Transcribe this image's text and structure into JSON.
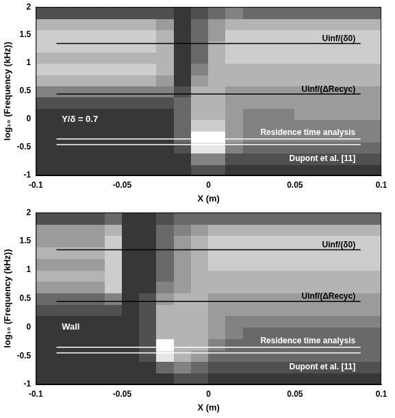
{
  "chart_data": [
    {
      "type": "heatmap",
      "x_label": "X (m)",
      "y_label": "log₁₀ (Frequency (kHz))",
      "xlim": [
        -0.1,
        0.1
      ],
      "xticks": [
        -0.1,
        -0.05,
        0,
        0.05,
        0.1
      ],
      "ylim": [
        -1,
        2
      ],
      "yticks": [
        -1,
        -0.5,
        0,
        0.5,
        1,
        1.5,
        2
      ],
      "grid": false,
      "clim": [
        0,
        9
      ],
      "x": [
        -0.095,
        -0.085,
        -0.075,
        -0.065,
        -0.055,
        -0.045,
        -0.035,
        -0.025,
        -0.015,
        -0.005,
        0.005,
        0.015,
        0.025,
        0.035,
        0.045,
        0.055,
        0.065,
        0.075,
        0.085,
        0.095
      ],
      "y": [
        -0.9,
        -0.7,
        -0.5,
        -0.3,
        -0.1,
        0.1,
        0.3,
        0.5,
        0.7,
        0.9,
        1.1,
        1.3,
        1.5,
        1.7,
        1.9
      ],
      "cells": [
        [
          1,
          1,
          1,
          1,
          1,
          1,
          1,
          1,
          1,
          2,
          2,
          1,
          1,
          1,
          1,
          1,
          1,
          1,
          1,
          1
        ],
        [
          1,
          1,
          1,
          1,
          1,
          1,
          1,
          1,
          1,
          4,
          4,
          2,
          2,
          2,
          2,
          2,
          2,
          2,
          2,
          2
        ],
        [
          1,
          1,
          1,
          1,
          1,
          1,
          1,
          1,
          2,
          8,
          8,
          4,
          3,
          3,
          3,
          3,
          3,
          3,
          3,
          3
        ],
        [
          1,
          1,
          1,
          1,
          1,
          1,
          1,
          1,
          3,
          9,
          9,
          5,
          4,
          4,
          4,
          4,
          4,
          4,
          4,
          4
        ],
        [
          1,
          1,
          1,
          1,
          1,
          1,
          1,
          1,
          3,
          7,
          7,
          5,
          4,
          4,
          4,
          4,
          4,
          4,
          4,
          4
        ],
        [
          1,
          1,
          1,
          1,
          1,
          1,
          1,
          1,
          3,
          6,
          6,
          5,
          4,
          4,
          4,
          5,
          5,
          5,
          5,
          5
        ],
        [
          2,
          2,
          2,
          2,
          2,
          2,
          2,
          2,
          3,
          6,
          6,
          5,
          5,
          5,
          5,
          5,
          5,
          5,
          5,
          5
        ],
        [
          4,
          4,
          4,
          4,
          4,
          4,
          4,
          4,
          2,
          6,
          6,
          5,
          5,
          5,
          5,
          5,
          5,
          5,
          5,
          5
        ],
        [
          6,
          6,
          6,
          6,
          6,
          6,
          6,
          5,
          1,
          5,
          6,
          6,
          6,
          6,
          6,
          6,
          6,
          6,
          6,
          6
        ],
        [
          7,
          7,
          7,
          7,
          7,
          7,
          7,
          6,
          1,
          4,
          6,
          6,
          6,
          6,
          6,
          6,
          6,
          6,
          6,
          6
        ],
        [
          6,
          6,
          6,
          6,
          6,
          6,
          6,
          6,
          1,
          3,
          6,
          7,
          7,
          7,
          7,
          7,
          7,
          7,
          7,
          7
        ],
        [
          7,
          7,
          7,
          7,
          7,
          7,
          7,
          6,
          1,
          3,
          6,
          7,
          7,
          7,
          7,
          7,
          7,
          7,
          7,
          7
        ],
        [
          7,
          7,
          7,
          7,
          7,
          7,
          7,
          6,
          1,
          3,
          5,
          7,
          7,
          7,
          7,
          7,
          7,
          7,
          7,
          7
        ],
        [
          6,
          6,
          6,
          6,
          6,
          6,
          6,
          5,
          1,
          3,
          5,
          6,
          6,
          6,
          6,
          6,
          6,
          6,
          6,
          6
        ],
        [
          2,
          2,
          2,
          2,
          2,
          2,
          2,
          2,
          1,
          2,
          3,
          4,
          3,
          3,
          3,
          3,
          3,
          3,
          3,
          3
        ]
      ],
      "series": [
        {
          "name": "Uinf/(δ0)",
          "type": "line",
          "color": "#000000",
          "x": [
            -0.088,
            0.088
          ],
          "values": [
            1.35,
            1.35
          ],
          "label_at": [
            0.085,
            1.43
          ]
        },
        {
          "name": "Uinf/(ΔRecyc)",
          "type": "line",
          "color": "#000000",
          "x": [
            -0.088,
            0.088
          ],
          "values": [
            0.45,
            0.45
          ],
          "label_at": [
            0.085,
            0.53
          ]
        },
        {
          "name": "Residence time analysis",
          "type": "line",
          "color": "#ffffff",
          "x": [
            -0.088,
            0.088
          ],
          "values": [
            -0.35,
            -0.35
          ],
          "label_at": [
            0.085,
            -0.24
          ]
        },
        {
          "name": "Dupont et al. [11]",
          "type": "line",
          "color": "#ffffff",
          "x": [
            -0.088,
            0.088
          ],
          "values": [
            -0.45,
            -0.45
          ],
          "label_at": [
            0.085,
            -0.7
          ]
        }
      ],
      "annotations": [
        {
          "text": "Y/δ = 0.7",
          "x": -0.085,
          "y": 0.0,
          "color": "#ffffff"
        }
      ]
    },
    {
      "type": "heatmap",
      "x_label": "X (m)",
      "y_label": "log₁₀ (Frequency (kHz))",
      "xlim": [
        -0.1,
        0.1
      ],
      "xticks": [
        -0.1,
        -0.05,
        0,
        0.05,
        0.1
      ],
      "ylim": [
        -1,
        2
      ],
      "yticks": [
        -1,
        -0.5,
        0,
        0.5,
        1,
        1.5,
        2
      ],
      "grid": false,
      "clim": [
        0,
        9
      ],
      "x": [
        -0.095,
        -0.085,
        -0.075,
        -0.065,
        -0.055,
        -0.045,
        -0.035,
        -0.025,
        -0.015,
        -0.005,
        0.005,
        0.015,
        0.025,
        0.035,
        0.045,
        0.055,
        0.065,
        0.075,
        0.085,
        0.095
      ],
      "y": [
        -0.9,
        -0.7,
        -0.5,
        -0.3,
        -0.1,
        0.1,
        0.3,
        0.5,
        0.7,
        0.9,
        1.1,
        1.3,
        1.5,
        1.7,
        1.9
      ],
      "cells": [
        [
          1,
          1,
          1,
          1,
          1,
          1,
          1,
          1,
          2,
          2,
          1,
          1,
          1,
          1,
          1,
          1,
          1,
          1,
          1,
          1
        ],
        [
          1,
          1,
          1,
          1,
          1,
          1,
          1,
          3,
          4,
          3,
          2,
          2,
          2,
          2,
          2,
          2,
          2,
          2,
          2,
          2
        ],
        [
          1,
          1,
          1,
          1,
          1,
          1,
          2,
          8,
          6,
          5,
          3,
          3,
          3,
          3,
          3,
          3,
          3,
          3,
          3,
          3
        ],
        [
          1,
          1,
          1,
          1,
          1,
          1,
          2,
          9,
          6,
          6,
          4,
          3,
          3,
          3,
          3,
          3,
          3,
          3,
          3,
          3
        ],
        [
          1,
          1,
          1,
          1,
          1,
          1,
          2,
          6,
          6,
          6,
          5,
          4,
          3,
          3,
          3,
          3,
          3,
          3,
          3,
          3
        ],
        [
          1,
          1,
          1,
          1,
          1,
          1,
          2,
          6,
          6,
          6,
          5,
          4,
          4,
          4,
          4,
          4,
          4,
          4,
          4,
          4
        ],
        [
          2,
          2,
          2,
          2,
          2,
          1,
          2,
          6,
          6,
          6,
          5,
          5,
          5,
          5,
          5,
          5,
          5,
          5,
          5,
          5
        ],
        [
          3,
          3,
          3,
          3,
          4,
          1,
          2,
          5,
          6,
          6,
          5,
          5,
          5,
          5,
          5,
          5,
          5,
          5,
          5,
          5
        ],
        [
          5,
          5,
          5,
          5,
          7,
          1,
          1,
          4,
          5,
          6,
          6,
          6,
          6,
          6,
          6,
          6,
          6,
          6,
          6,
          6
        ],
        [
          6,
          6,
          6,
          6,
          7,
          1,
          1,
          3,
          5,
          6,
          6,
          6,
          6,
          6,
          6,
          6,
          6,
          6,
          6,
          6
        ],
        [
          5,
          5,
          5,
          5,
          7,
          1,
          1,
          3,
          5,
          6,
          7,
          7,
          7,
          7,
          7,
          7,
          7,
          7,
          7,
          7
        ],
        [
          6,
          6,
          6,
          6,
          7,
          1,
          1,
          3,
          5,
          6,
          7,
          7,
          7,
          7,
          7,
          7,
          7,
          7,
          7,
          7
        ],
        [
          5,
          5,
          5,
          5,
          7,
          1,
          1,
          3,
          5,
          6,
          7,
          7,
          7,
          7,
          7,
          7,
          7,
          7,
          7,
          7
        ],
        [
          5,
          5,
          5,
          5,
          6,
          1,
          1,
          3,
          4,
          5,
          6,
          6,
          6,
          6,
          6,
          6,
          6,
          6,
          6,
          6
        ],
        [
          2,
          2,
          2,
          2,
          3,
          1,
          1,
          2,
          3,
          3,
          3,
          3,
          3,
          3,
          3,
          3,
          3,
          3,
          3,
          3
        ]
      ],
      "series": [
        {
          "name": "Uinf/(δ0)",
          "type": "line",
          "color": "#000000",
          "x": [
            -0.088,
            0.088
          ],
          "values": [
            1.35,
            1.35
          ],
          "label_at": [
            0.085,
            1.43
          ]
        },
        {
          "name": "Uinf/(ΔRecyc)",
          "type": "line",
          "color": "#000000",
          "x": [
            -0.088,
            0.088
          ],
          "values": [
            0.45,
            0.45
          ],
          "label_at": [
            0.085,
            0.53
          ]
        },
        {
          "name": "Residence time analysis",
          "type": "line",
          "color": "#ffffff",
          "x": [
            -0.088,
            0.088
          ],
          "values": [
            -0.35,
            -0.35
          ],
          "label_at": [
            0.085,
            -0.24
          ]
        },
        {
          "name": "Dupont et al. [11]",
          "type": "line",
          "color": "#ffffff",
          "x": [
            -0.088,
            0.088
          ],
          "values": [
            -0.45,
            -0.45
          ],
          "label_at": [
            0.085,
            -0.7
          ]
        }
      ],
      "annotations": [
        {
          "text": "Wall",
          "x": -0.085,
          "y": 0.0,
          "color": "#ffffff"
        }
      ]
    }
  ]
}
